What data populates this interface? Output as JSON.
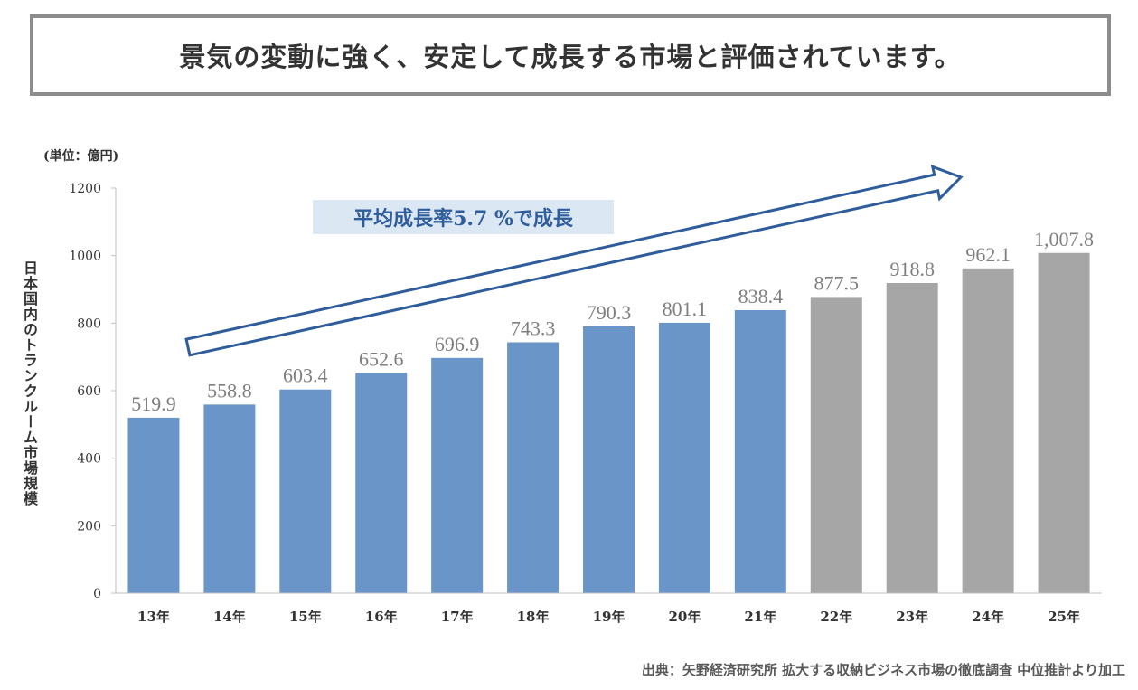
{
  "headline": "景気の変動に強く、安定して成長する市場と評価されています。",
  "growth_note": "平均成長率5.7 %で成長",
  "source_note": "出典：矢野経済研究所 拡大する収納ビジネス市場の徹底調査 中位推計より加工",
  "colors": {
    "actual_bar": "#6a95c8",
    "forecast_bar": "#a6a6a6",
    "arrow_stroke": "#2f5c9a",
    "headline_border": "#8c8c8c",
    "growth_box_bg": "#dbe7f3",
    "axis": "#bfbfbf"
  },
  "chart_data": {
    "type": "bar",
    "title": "",
    "unit_label": "(単位：億円)",
    "ylabel": "日本国内のトランクルーム市場規模",
    "xlabel": "",
    "ylim": [
      0,
      1200
    ],
    "yticks": [
      0,
      200,
      400,
      600,
      800,
      1000,
      1200
    ],
    "ytick_labels": [
      "0",
      "200",
      "400",
      "600",
      "800",
      "1000",
      "1200"
    ],
    "grid": false,
    "categories": [
      "13年",
      "14年",
      "15年",
      "16年",
      "17年",
      "18年",
      "19年",
      "20年",
      "21年",
      "22年",
      "23年",
      "24年",
      "25年"
    ],
    "values": [
      519.9,
      558.8,
      603.4,
      652.6,
      696.9,
      743.3,
      790.3,
      801.1,
      838.4,
      877.5,
      918.8,
      962.1,
      1007.8
    ],
    "data_labels": [
      "519.9",
      "558.8",
      "603.4",
      "652.6",
      "696.9",
      "743.3",
      "790.3",
      "801.1",
      "838.4",
      "877.5",
      "918.8",
      "962.1",
      "1,007.8"
    ],
    "forecast_from_index": 9
  }
}
